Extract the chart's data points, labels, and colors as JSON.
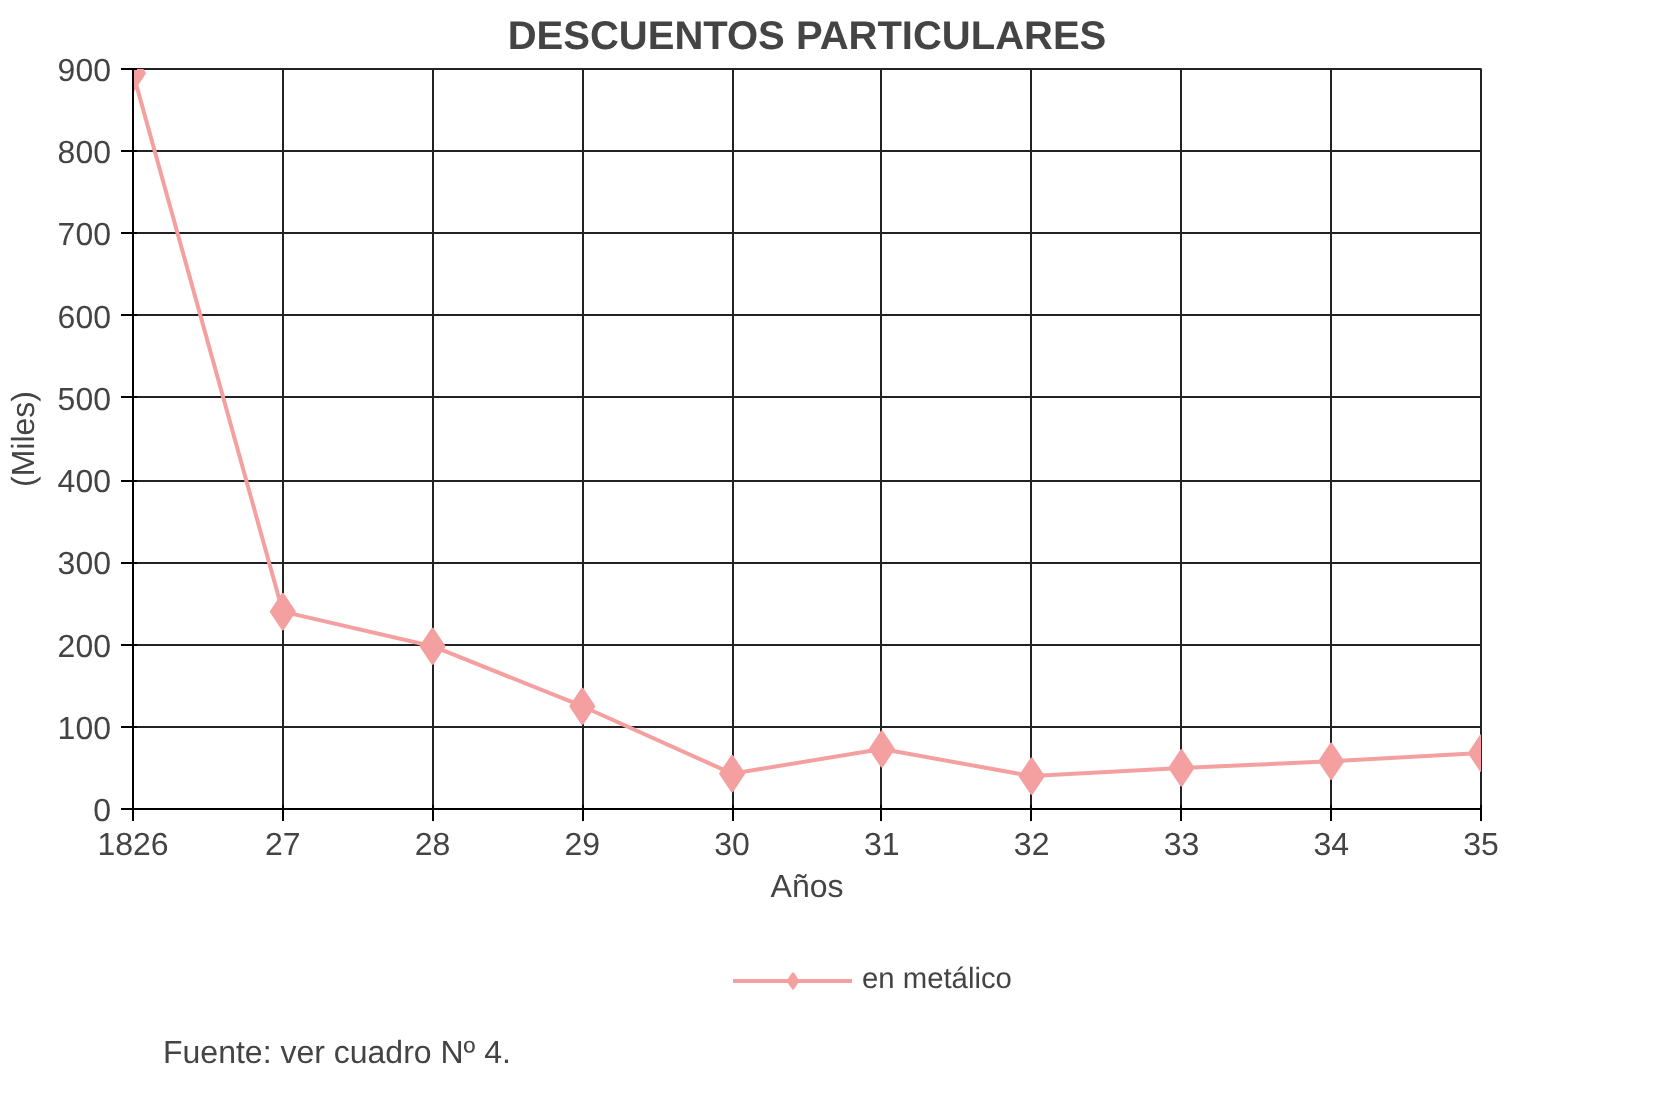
{
  "chart_data": {
    "type": "line",
    "title": "DESCUENTOS PARTICULARES",
    "xlabel": "Años",
    "ylabel": "(Miles)",
    "categories": [
      "1826",
      "27",
      "28",
      "29",
      "30",
      "31",
      "32",
      "33",
      "34",
      "35"
    ],
    "series": [
      {
        "name": "en metálico",
        "color": "#f4a0a0",
        "values": [
          895,
          240,
          198,
          125,
          43,
          73,
          40,
          50,
          58,
          68
        ]
      }
    ],
    "ylim": [
      0,
      900
    ],
    "yticks": [
      0,
      100,
      200,
      300,
      400,
      500,
      600,
      700,
      800,
      900
    ],
    "grid": true,
    "legend": "bottom",
    "marker": "diamond",
    "line_style": "solid",
    "annotations": [
      "Fuente: ver cuadro Nº 4."
    ]
  }
}
